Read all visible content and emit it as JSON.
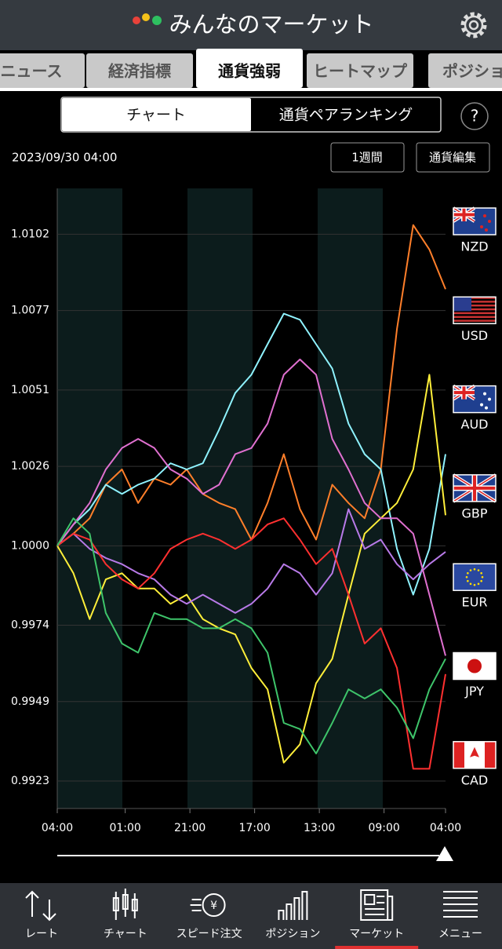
{
  "header": {
    "title": "みんなのマーケット"
  },
  "tabs": [
    "ニュース",
    "経済指標",
    "通貨強弱",
    "ヒートマップ",
    "ポジション"
  ],
  "segments": [
    "チャート",
    "通貨ペアランキング"
  ],
  "help": "?",
  "timestamp": "2023/09/30 04:00",
  "buttons": [
    "1週間",
    "通貨編集"
  ],
  "nav": [
    "レート",
    "チャート",
    "スピード注文",
    "ポジション",
    "マーケット",
    "メニュー"
  ],
  "chart_data": {
    "type": "line",
    "x": [
      0,
      5,
      10,
      15,
      20,
      25,
      30,
      35,
      40,
      45,
      50,
      55,
      60,
      65,
      70,
      75,
      80,
      85,
      90,
      95,
      100,
      105,
      110,
      115,
      120
    ],
    "xlim": [
      0,
      120
    ],
    "xticks": [
      {
        "value": 0,
        "label": "04:00"
      },
      {
        "value": 21,
        "label": "01:00"
      },
      {
        "value": 41,
        "label": "21:00"
      },
      {
        "value": 61,
        "label": "17:00"
      },
      {
        "value": 81,
        "label": "13:00"
      },
      {
        "value": 101,
        "label": "09:00"
      },
      {
        "value": 120,
        "label": "04:00"
      }
    ],
    "ylim": [
      0.9914,
      1.0117
    ],
    "yticks": [
      1.0102,
      1.0077,
      1.0051,
      1.0026,
      {
        "value": 1,
        "label": "1.0000"
      },
      0.9974,
      0.9949,
      0.9923
    ],
    "grid": true,
    "series": [
      {
        "name": "NZD",
        "color": "#ff7f2a",
        "values": [
          1.0,
          1.0004,
          1.0009,
          1.002,
          1.0025,
          1.0014,
          1.0022,
          1.002,
          1.0025,
          1.0017,
          1.0014,
          1.0012,
          1.0002,
          1.0014,
          1.003,
          1.0012,
          1.0002,
          1.002,
          1.0014,
          1.0009,
          1.0025,
          1.0071,
          1.0105,
          1.0097,
          1.0084
        ]
      },
      {
        "name": "USD",
        "color": "#8ff3ff",
        "values": [
          1.0,
          1.0007,
          1.0012,
          1.002,
          1.0017,
          1.002,
          1.0022,
          1.0027,
          1.0025,
          1.0027,
          1.0038,
          1.005,
          1.0056,
          1.0066,
          1.0076,
          1.0074,
          1.0066,
          1.0058,
          1.004,
          1.003,
          1.0025,
          0.9999,
          0.9984,
          0.9999,
          1.003
        ]
      },
      {
        "name": "AUD",
        "color": "#ffef3a",
        "values": [
          1.0,
          0.9991,
          0.9976,
          0.9989,
          0.9991,
          0.9986,
          0.9986,
          0.9981,
          0.9984,
          0.9976,
          0.9973,
          0.9971,
          0.996,
          0.9953,
          0.9929,
          0.9935,
          0.9955,
          0.9963,
          0.9984,
          1.0004,
          1.0009,
          1.0014,
          1.0025,
          1.0056,
          1.001
        ]
      },
      {
        "name": "GBP",
        "color": "#b87ae8",
        "values": [
          1.0,
          1.0004,
          0.9999,
          0.9996,
          0.9994,
          0.9991,
          0.9989,
          0.9984,
          0.9981,
          0.9984,
          0.9981,
          0.9978,
          0.9981,
          0.9986,
          0.9994,
          0.9991,
          0.9984,
          0.9991,
          1.0012,
          0.9999,
          1.0002,
          0.9994,
          0.9989,
          0.9994,
          0.9998
        ]
      },
      {
        "name": "EUR",
        "color": "#e070d0",
        "values": [
          1.0,
          1.0007,
          1.0014,
          1.0025,
          1.0032,
          1.0035,
          1.0032,
          1.0025,
          1.0022,
          1.0017,
          1.002,
          1.003,
          1.0032,
          1.004,
          1.0056,
          1.0061,
          1.0056,
          1.0035,
          1.0025,
          1.0014,
          1.0009,
          1.0009,
          1.0004,
          0.9984,
          0.9964
        ]
      },
      {
        "name": "JPY",
        "color": "#ff3030",
        "values": [
          1.0,
          1.0004,
          1.0002,
          0.9994,
          0.9989,
          0.9986,
          0.9991,
          0.9999,
          1.0002,
          1.0004,
          1.0002,
          0.9999,
          1.0002,
          1.0007,
          1.0009,
          1.0002,
          0.9994,
          0.9999,
          0.9984,
          0.9968,
          0.9973,
          0.996,
          0.9927,
          0.9927,
          0.9958
        ]
      },
      {
        "name": "CAD",
        "color": "#3ec46a",
        "values": [
          1.0,
          1.0009,
          1.0004,
          0.9978,
          0.9968,
          0.9965,
          0.9978,
          0.9976,
          0.9976,
          0.9973,
          0.9973,
          0.9976,
          0.9973,
          0.9965,
          0.9942,
          0.994,
          0.9932,
          0.9942,
          0.9953,
          0.995,
          0.9953,
          0.9947,
          0.9937,
          0.9953,
          0.9963
        ]
      }
    ]
  }
}
